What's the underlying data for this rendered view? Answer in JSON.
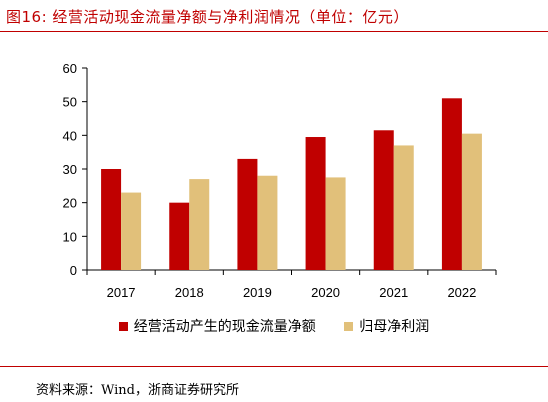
{
  "figure": {
    "title": "图16:   经营活动现金流量净额与净利润情况（单位：亿元）",
    "source": "资料来源：Wind，浙商证券研究所"
  },
  "colors": {
    "accent": "#c00000",
    "series_1": "#c00000",
    "series_2": "#e1c07a"
  },
  "chart_data": {
    "type": "bar",
    "categories": [
      "2017",
      "2018",
      "2019",
      "2020",
      "2021",
      "2022"
    ],
    "series": [
      {
        "name": "经营活动产生的现金流量净额",
        "values": [
          30,
          20,
          33,
          39.5,
          41.5,
          51
        ]
      },
      {
        "name": "归母净利润",
        "values": [
          23,
          27,
          28,
          27.5,
          37,
          40.5
        ]
      }
    ],
    "yticks": [
      0,
      10,
      20,
      30,
      40,
      50,
      60
    ],
    "ylim": [
      0,
      60
    ],
    "grid": false,
    "legend": "bottom"
  }
}
